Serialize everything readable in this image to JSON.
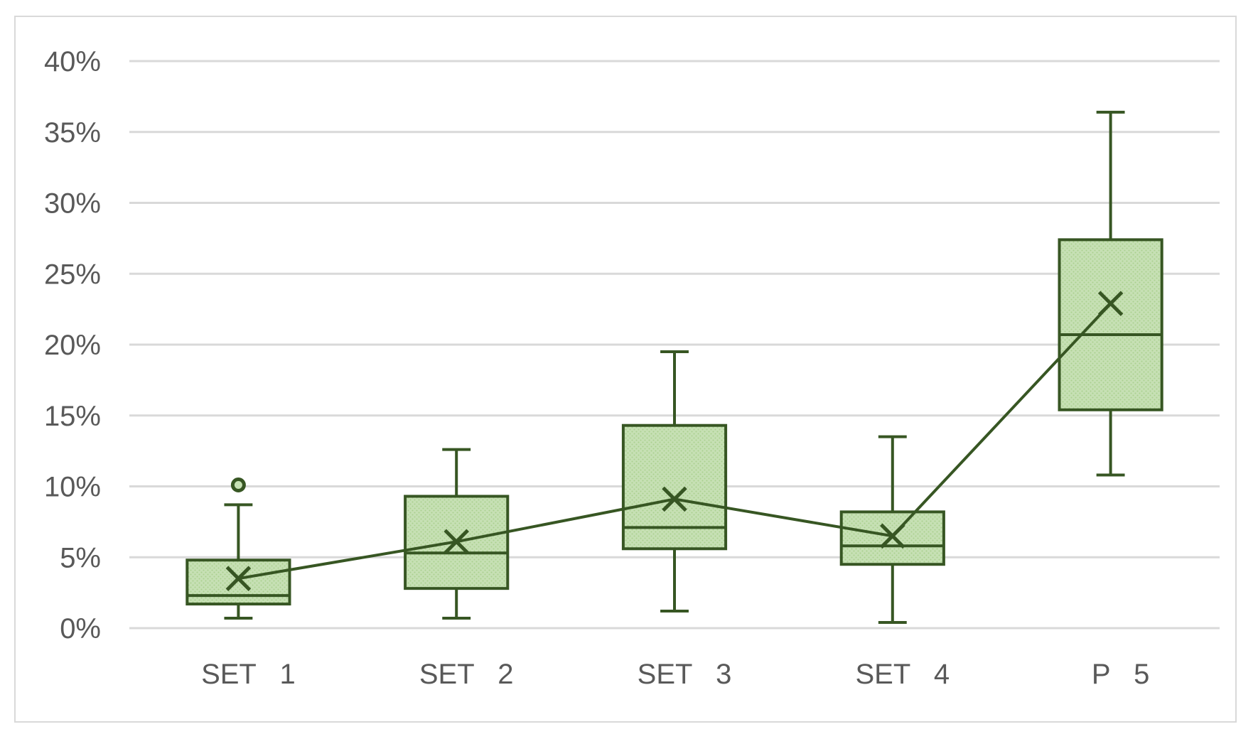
{
  "chart_data": {
    "type": "box",
    "categories": [
      "SET   1",
      "SET   2",
      "SET   3",
      "SET   4",
      "P   5"
    ],
    "ylim": [
      0,
      40
    ],
    "yticks": [
      "0%",
      "5%",
      "10%",
      "15%",
      "20%",
      "25%",
      "30%",
      "35%",
      "40%"
    ],
    "ytick_values": [
      0,
      5,
      10,
      15,
      20,
      25,
      30,
      35,
      40
    ],
    "grid": true,
    "boxes": [
      {
        "min": 0.7,
        "q1": 1.7,
        "median": 2.3,
        "q3": 4.8,
        "max": 8.7,
        "mean": 3.5,
        "outliers": [
          10.1
        ]
      },
      {
        "min": 0.7,
        "q1": 2.8,
        "median": 5.3,
        "q3": 9.3,
        "max": 12.6,
        "mean": 6.1,
        "outliers": []
      },
      {
        "min": 1.2,
        "q1": 5.6,
        "median": 7.1,
        "q3": 14.3,
        "max": 19.5,
        "mean": 9.1,
        "outliers": []
      },
      {
        "min": 0.4,
        "q1": 4.5,
        "median": 5.8,
        "q3": 8.2,
        "max": 13.5,
        "mean": 6.5,
        "outliers": []
      },
      {
        "min": 10.8,
        "q1": 15.4,
        "median": 20.7,
        "q3": 27.4,
        "max": 36.4,
        "mean": 22.9,
        "outliers": []
      }
    ],
    "mean_line": true,
    "colors": {
      "stroke": "#375623",
      "fill": "#c6e0b4",
      "grid": "#d9d9d9",
      "text": "#595959"
    }
  }
}
